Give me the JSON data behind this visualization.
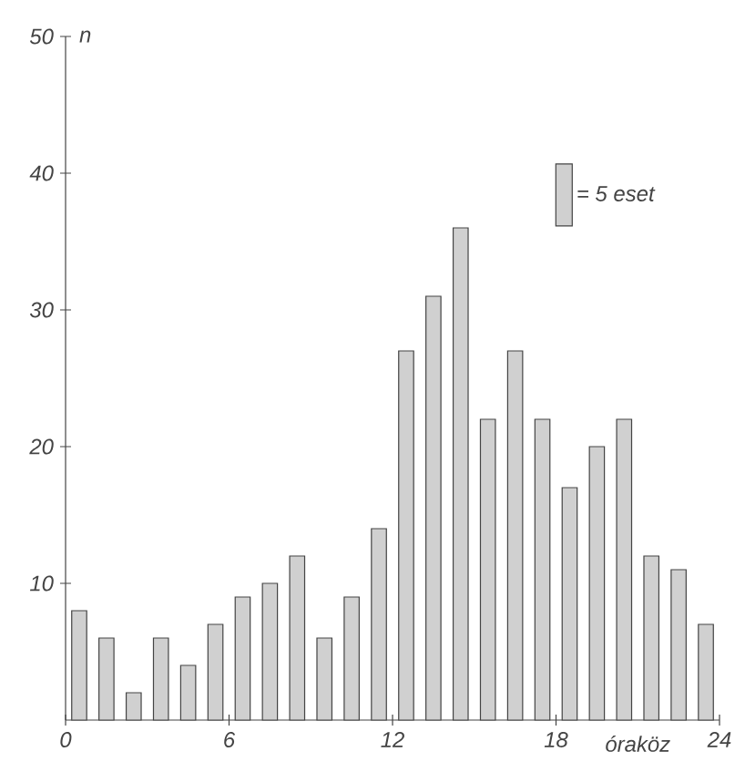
{
  "chart_data": {
    "type": "histogram",
    "bins": [
      0,
      1,
      2,
      3,
      4,
      5,
      6,
      7,
      8,
      9,
      10,
      11,
      12,
      13,
      14,
      15,
      16,
      17,
      18,
      19,
      20,
      21,
      22,
      23,
      24
    ],
    "series": [
      {
        "name": "= 5 eset",
        "color": "#444444",
        "values": [
          8,
          6,
          2,
          6,
          4,
          7,
          9,
          10,
          12,
          6,
          9,
          14,
          27,
          31,
          36,
          22,
          27,
          22,
          17,
          20,
          22,
          12,
          11,
          7
        ]
      }
    ],
    "xlim": [
      0,
      24
    ],
    "xticks": [
      0,
      6,
      12,
      18,
      24
    ],
    "ylim": [
      0,
      50
    ],
    "yticks": [
      10,
      20,
      30,
      40,
      50
    ],
    "xlabel": "óraköz",
    "ylabel": "n",
    "grid": false,
    "legend": "top right"
  }
}
